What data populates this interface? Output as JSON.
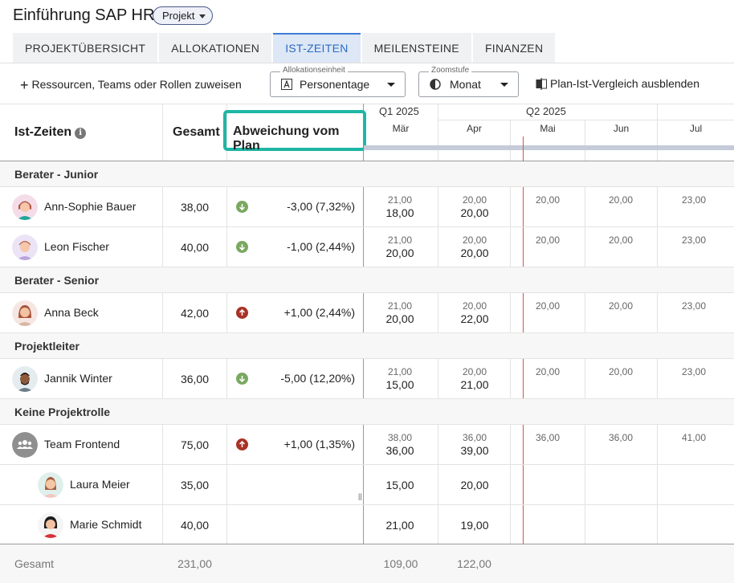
{
  "project": {
    "title": "Einführung SAP HR",
    "badge": "Projekt"
  },
  "tabs": [
    {
      "label": "PROJEKTÜBERSICHT"
    },
    {
      "label": "ALLOKATIONEN"
    },
    {
      "label": "IST-ZEITEN",
      "active": true
    },
    {
      "label": "MEILENSTEINE"
    },
    {
      "label": "FINANZEN"
    }
  ],
  "toolbar": {
    "assign_label": "Ressourcen, Teams oder Rollen zuweisen",
    "allocation_caption": "Allokationseinheit",
    "allocation_value": "Personentage",
    "zoom_caption": "Zoomstufe",
    "zoom_value": "Monat",
    "hide_compare_label": "Plan-Ist-Vergleich ausblenden"
  },
  "table": {
    "title": "Ist-Zeiten",
    "info_glyph": "i",
    "col_total": "Gesamt",
    "col_deviation": "Abweichung vom Plan",
    "quarters": [
      "Q1 2025",
      "Q2 2025"
    ],
    "months": [
      "Mär",
      "Apr",
      "Mai",
      "Jun",
      "Jul"
    ],
    "groups": [
      {
        "label": "Berater - Junior"
      },
      {
        "label": "Berater - Senior"
      },
      {
        "label": "Projektleiter"
      },
      {
        "label": "Keine Projektrolle"
      }
    ],
    "rows": [
      {
        "name": "Ann-Sophie Bauer",
        "total": "38,00",
        "deviation": "-3,00 (7,32%)",
        "trend": "down",
        "plan": [
          "21,00",
          "20,00",
          "20,00",
          "20,00",
          "23,00"
        ],
        "actual": [
          "18,00",
          "20,00"
        ]
      },
      {
        "name": "Leon Fischer",
        "total": "40,00",
        "deviation": "-1,00 (2,44%)",
        "trend": "down",
        "plan": [
          "21,00",
          "20,00",
          "20,00",
          "20,00",
          "23,00"
        ],
        "actual": [
          "20,00",
          "20,00"
        ]
      },
      {
        "name": "Anna Beck",
        "total": "42,00",
        "deviation": "+1,00 (2,44%)",
        "trend": "up",
        "plan": [
          "21,00",
          "20,00",
          "20,00",
          "20,00",
          "23,00"
        ],
        "actual": [
          "20,00",
          "22,00"
        ]
      },
      {
        "name": "Jannik Winter",
        "total": "36,00",
        "deviation": "-5,00 (12,20%)",
        "trend": "down",
        "plan": [
          "21,00",
          "20,00",
          "20,00",
          "20,00",
          "23,00"
        ],
        "actual": [
          "15,00",
          "21,00"
        ]
      },
      {
        "name": "Team Frontend",
        "total": "75,00",
        "deviation": "+1,00 (1,35%)",
        "trend": "up",
        "plan": [
          "38,00",
          "36,00",
          "36,00",
          "36,00",
          "41,00"
        ],
        "actual": [
          "36,00",
          "39,00"
        ]
      },
      {
        "name": "Laura Meier",
        "total": "35,00",
        "actual": [
          "15,00",
          "20,00"
        ]
      },
      {
        "name": "Marie Schmidt",
        "total": "40,00",
        "actual": [
          "21,00",
          "19,00"
        ]
      }
    ],
    "footer": {
      "label": "Gesamt",
      "total": "231,00",
      "months": [
        "109,00",
        "122,00"
      ]
    }
  }
}
